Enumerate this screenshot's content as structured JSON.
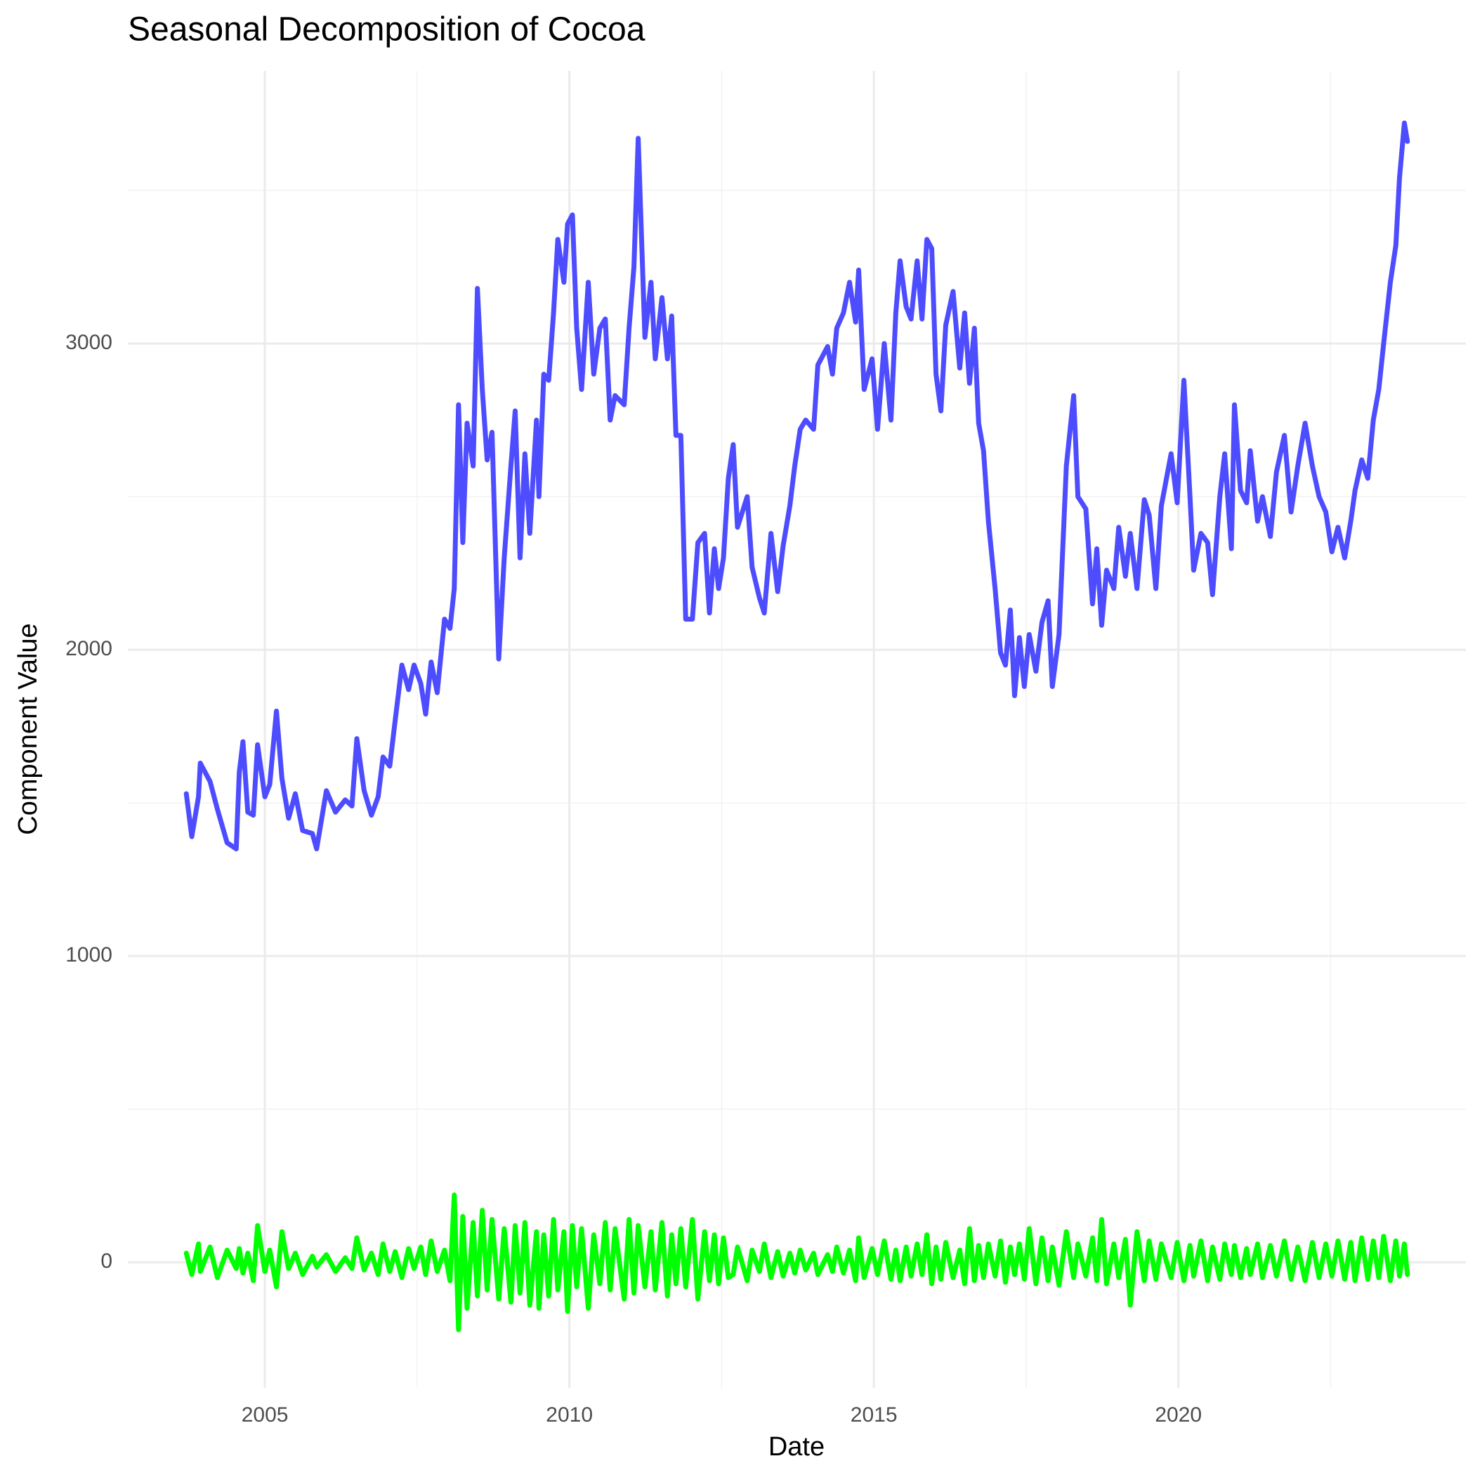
{
  "chart_data": {
    "type": "line",
    "title": "Seasonal Decomposition of Cocoa",
    "x_label": "Date",
    "y_label": "Component Value",
    "xlim": [
      2002.75,
      2024.72
    ],
    "ylim": [
      -410,
      3890
    ],
    "xticks": [
      2005,
      2010,
      2015,
      2020
    ],
    "yticks": [
      0,
      1000,
      2000,
      3000
    ],
    "grid": true,
    "x": [
      2003.71,
      2003.8,
      2003.91,
      2003.94,
      2004.1,
      2004.22,
      2004.38,
      2004.53,
      2004.58,
      2004.64,
      2004.72,
      2004.81,
      2004.88,
      2005.0,
      2005.08,
      2005.19,
      2005.28,
      2005.39,
      2005.5,
      2005.62,
      2005.78,
      2005.85,
      2006.01,
      2006.16,
      2006.32,
      2006.43,
      2006.51,
      2006.63,
      2006.75,
      2006.86,
      2006.94,
      2007.05,
      2007.14,
      2007.25,
      2007.36,
      2007.45,
      2007.56,
      2007.64,
      2007.73,
      2007.83,
      2007.95,
      2008.04,
      2008.11,
      2008.18,
      2008.25,
      2008.32,
      2008.42,
      2008.49,
      2008.57,
      2008.65,
      2008.73,
      2008.84,
      2008.93,
      2009.04,
      2009.11,
      2009.19,
      2009.27,
      2009.35,
      2009.46,
      2009.5,
      2009.58,
      2009.66,
      2009.74,
      2009.81,
      2009.91,
      2009.97,
      2010.05,
      2010.12,
      2010.2,
      2010.31,
      2010.4,
      2010.5,
      2010.59,
      2010.67,
      2010.75,
      2010.9,
      2010.98,
      2011.06,
      2011.13,
      2011.24,
      2011.34,
      2011.41,
      2011.52,
      2011.61,
      2011.68,
      2011.75,
      2011.83,
      2011.91,
      2012.02,
      2012.11,
      2012.22,
      2012.3,
      2012.38,
      2012.45,
      2012.53,
      2012.61,
      2012.69,
      2012.76,
      2012.92,
      2013.0,
      2013.12,
      2013.2,
      2013.31,
      2013.42,
      2013.51,
      2013.62,
      2013.7,
      2013.79,
      2013.88,
      2014.01,
      2014.08,
      2014.24,
      2014.32,
      2014.39,
      2014.5,
      2014.6,
      2014.7,
      2014.75,
      2014.84,
      2014.97,
      2015.06,
      2015.17,
      2015.28,
      2015.36,
      2015.43,
      2015.53,
      2015.61,
      2015.71,
      2015.79,
      2015.87,
      2015.95,
      2016.02,
      2016.1,
      2016.18,
      2016.3,
      2016.41,
      2016.49,
      2016.57,
      2016.65,
      2016.72,
      2016.8,
      2016.88,
      2016.99,
      2017.08,
      2017.16,
      2017.24,
      2017.31,
      2017.39,
      2017.47,
      2017.55,
      2017.66,
      2017.76,
      2017.86,
      2017.93,
      2018.04,
      2018.16,
      2018.28,
      2018.35,
      2018.48,
      2018.59,
      2018.66,
      2018.74,
      2018.82,
      2018.94,
      2019.02,
      2019.13,
      2019.21,
      2019.32,
      2019.44,
      2019.52,
      2019.63,
      2019.72,
      2019.88,
      2019.98,
      2020.09,
      2020.19,
      2020.25,
      2020.37,
      2020.48,
      2020.56,
      2020.68,
      2020.76,
      2020.87,
      2020.92,
      2021.02,
      2021.12,
      2021.18,
      2021.3,
      2021.38,
      2021.51,
      2021.61,
      2021.74,
      2021.85,
      2021.96,
      2022.08,
      2022.2,
      2022.31,
      2022.42,
      2022.52,
      2022.62,
      2022.73,
      2022.83,
      2022.9,
      2023.01,
      2023.11,
      2023.2,
      2023.29,
      2023.37,
      2023.48,
      2023.57,
      2023.63,
      2023.71,
      2023.76
    ],
    "series": [
      {
        "color": "#4d4dff",
        "values": [
          1530,
          1390,
          1520,
          1630,
          1570,
          1480,
          1370,
          1350,
          1600,
          1700,
          1470,
          1460,
          1690,
          1520,
          1560,
          1800,
          1580,
          1450,
          1530,
          1410,
          1400,
          1350,
          1540,
          1470,
          1510,
          1490,
          1710,
          1540,
          1460,
          1520,
          1650,
          1620,
          1770,
          1950,
          1870,
          1950,
          1890,
          1790,
          1960,
          1860,
          2100,
          2070,
          2200,
          2800,
          2350,
          2740,
          2600,
          3180,
          2850,
          2620,
          2710,
          1970,
          2300,
          2600,
          2780,
          2300,
          2640,
          2380,
          2750,
          2500,
          2900,
          2880,
          3100,
          3340,
          3200,
          3390,
          3420,
          3050,
          2850,
          3200,
          2900,
          3050,
          3080,
          2750,
          2830,
          2800,
          3050,
          3250,
          3670,
          3020,
          3200,
          2950,
          3150,
          2950,
          3090,
          2700,
          2700,
          2100,
          2100,
          2350,
          2380,
          2120,
          2330,
          2200,
          2300,
          2560,
          2670,
          2400,
          2500,
          2270,
          2170,
          2120,
          2380,
          2190,
          2340,
          2470,
          2600,
          2720,
          2750,
          2720,
          2930,
          2990,
          2900,
          3050,
          3100,
          3200,
          3070,
          3240,
          2850,
          2950,
          2720,
          3000,
          2750,
          3100,
          3270,
          3120,
          3080,
          3270,
          3080,
          3340,
          3310,
          2900,
          2780,
          3060,
          3170,
          2920,
          3100,
          2870,
          3050,
          2740,
          2650,
          2420,
          2200,
          1990,
          1950,
          2130,
          1850,
          2040,
          1880,
          2050,
          1930,
          2090,
          2160,
          1880,
          2050,
          2600,
          2830,
          2500,
          2460,
          2150,
          2330,
          2080,
          2260,
          2200,
          2400,
          2240,
          2380,
          2200,
          2490,
          2440,
          2200,
          2470,
          2640,
          2480,
          2880,
          2500,
          2260,
          2380,
          2350,
          2180,
          2500,
          2640,
          2330,
          2800,
          2520,
          2480,
          2650,
          2420,
          2500,
          2370,
          2580,
          2700,
          2450,
          2600,
          2740,
          2600,
          2500,
          2450,
          2320,
          2400,
          2300,
          2420,
          2520,
          2620,
          2560,
          2750,
          2850,
          3000,
          3200,
          3320,
          3540,
          3720,
          3660
        ]
      },
      {
        "color": "#00ff00",
        "values": [
          30,
          -40,
          60,
          -30,
          50,
          -50,
          40,
          -20,
          45,
          -35,
          30,
          -60,
          120,
          -30,
          40,
          -80,
          100,
          -20,
          30,
          -40,
          20,
          -15,
          25,
          -30,
          15,
          -20,
          80,
          -25,
          30,
          -40,
          60,
          -30,
          35,
          -50,
          45,
          -20,
          50,
          -40,
          70,
          -30,
          40,
          -60,
          220,
          -220,
          150,
          -150,
          130,
          -110,
          170,
          -90,
          140,
          -120,
          110,
          -130,
          120,
          -100,
          130,
          -140,
          100,
          -150,
          90,
          -110,
          140,
          -90,
          100,
          -160,
          120,
          -80,
          110,
          -150,
          90,
          -70,
          130,
          -90,
          110,
          -120,
          140,
          -100,
          120,
          -80,
          100,
          -90,
          130,
          -110,
          90,
          -70,
          110,
          -80,
          140,
          -120,
          100,
          -60,
          90,
          -70,
          80,
          -50,
          -40,
          50,
          -60,
          40,
          -30,
          60,
          -50,
          35,
          -45,
          30,
          -35,
          40,
          -25,
          30,
          -40,
          25,
          -30,
          50,
          -35,
          40,
          -60,
          80,
          -50,
          45,
          -40,
          70,
          -55,
          40,
          -60,
          50,
          -45,
          60,
          -40,
          90,
          -70,
          50,
          -55,
          65,
          -50,
          40,
          -70,
          110,
          -60,
          55,
          -50,
          60,
          -45,
          70,
          -65,
          50,
          -40,
          60,
          -55,
          110,
          -70,
          80,
          -60,
          50,
          -75,
          100,
          -50,
          60,
          -45,
          80,
          -60,
          140,
          -70,
          60,
          -50,
          75,
          -140,
          100,
          -60,
          70,
          -55,
          60,
          -50,
          65,
          -60,
          55,
          -45,
          70,
          -60,
          50,
          -55,
          60,
          -40,
          55,
          -50,
          45,
          -40,
          60,
          -50,
          55,
          -45,
          70,
          -55,
          50,
          -60,
          65,
          -50,
          60,
          -45,
          70,
          -55,
          65,
          -60,
          80,
          -55,
          70,
          -50,
          85,
          -60,
          70,
          -45,
          60,
          -40
        ]
      }
    ]
  }
}
